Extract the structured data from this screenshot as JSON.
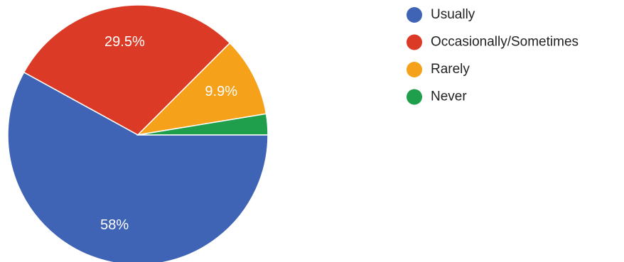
{
  "chart_data": {
    "type": "pie",
    "categories": [
      "Usually",
      "Occasionally/Sometimes",
      "Rarely",
      "Never"
    ],
    "values": [
      58,
      29.5,
      9.9,
      2.6
    ],
    "data_labels": [
      "58%",
      "29.5%",
      "9.9%",
      ""
    ],
    "colors": [
      "#3f64b5",
      "#db3b26",
      "#f6a11a",
      "#1f9e4b"
    ],
    "start_angle_deg": 0,
    "direction": "clockwise",
    "legend": {
      "position": "right",
      "entries": [
        "Usually",
        "Occasionally/Sometimes",
        "Rarely",
        "Never"
      ]
    }
  }
}
